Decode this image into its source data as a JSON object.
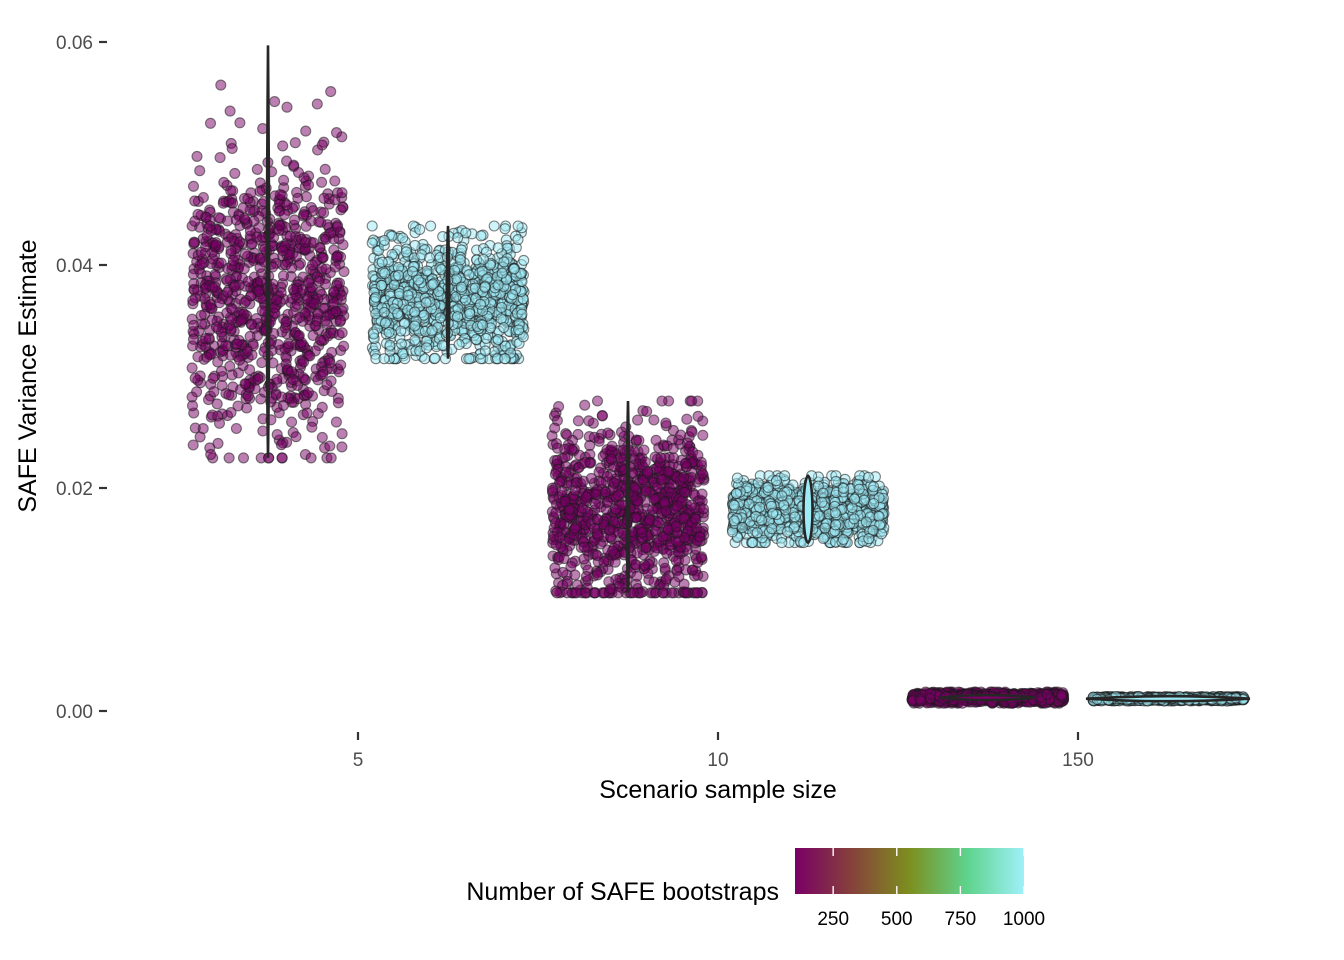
{
  "chart_data": {
    "type": "scatter",
    "subtype": "jittered points with violin overlay",
    "title": "",
    "xlabel": "Scenario sample size",
    "ylabel": "SAFE Variance Estimate",
    "x_categories": [
      "5",
      "10",
      "150"
    ],
    "y_ticks": [
      0.0,
      0.02,
      0.04,
      0.06
    ],
    "y_tick_labels": [
      "0.00",
      "0.02",
      "0.04",
      "0.06"
    ],
    "ylim": [
      -0.0005,
      0.0605
    ],
    "grid": false,
    "color_legend": {
      "title": "Number of SAFE bootstraps",
      "position": "bottom",
      "range": [
        100,
        1000
      ],
      "ticks": [
        250,
        500,
        750,
        1000
      ],
      "tick_labels": [
        "250",
        "500",
        "750",
        "1000"
      ],
      "colors": [
        "#7a0065",
        "#86423a",
        "#7d8f1f",
        "#5ed38c",
        "#9ff0f8"
      ]
    },
    "series": [
      {
        "name": "100 bootstraps",
        "bootstraps": 100,
        "color": "#7a0065",
        "groups": [
          {
            "category": "5",
            "min": 0.0227,
            "max": 0.0597,
            "q_low": 0.03,
            "q_high": 0.044,
            "center": 0.037,
            "n_points": 900
          },
          {
            "category": "10",
            "min": 0.0106,
            "max": 0.0278,
            "q_low": 0.0135,
            "q_high": 0.0225,
            "center": 0.018,
            "n_points": 1000
          },
          {
            "category": "150",
            "min": 0.0007,
            "max": 0.0017,
            "q_low": 0.0009,
            "q_high": 0.0014,
            "center": 0.0012,
            "n_points": 1000
          }
        ]
      },
      {
        "name": "1000 bootstraps",
        "bootstraps": 1000,
        "color": "#9eeaf5",
        "groups": [
          {
            "category": "5",
            "min": 0.0316,
            "max": 0.0435,
            "q_low": 0.034,
            "q_high": 0.04,
            "center": 0.037,
            "n_points": 1000
          },
          {
            "category": "10",
            "min": 0.0151,
            "max": 0.0211,
            "q_low": 0.0165,
            "q_high": 0.0195,
            "center": 0.018,
            "n_points": 1000
          },
          {
            "category": "150",
            "min": 0.0009,
            "max": 0.0013,
            "q_low": 0.001,
            "q_high": 0.0012,
            "center": 0.0011,
            "n_points": 1000
          }
        ]
      }
    ]
  }
}
